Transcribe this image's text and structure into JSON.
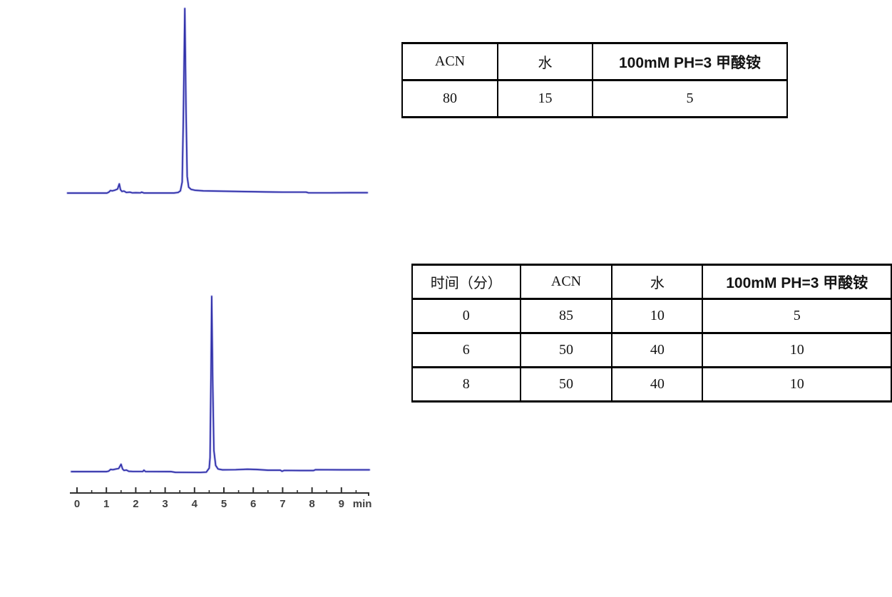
{
  "document": {
    "background_color": "#ffffff",
    "trace_color": "#2f2fa8",
    "trace_glow_color": "#8c8ce0",
    "axis_color": "#303030",
    "axis_label_color": "#3f3f3f"
  },
  "tables": {
    "isocratic": {
      "headers": [
        "ACN",
        "水",
        "100mM PH=3 甲酸铵"
      ],
      "rows": [
        [
          "80",
          "15",
          "5"
        ]
      ]
    },
    "gradient": {
      "headers": [
        "时间（分）",
        "ACN",
        "水",
        "100mM PH=3 甲酸铵"
      ],
      "rows": [
        [
          "0",
          "85",
          "10",
          "5"
        ],
        [
          "6",
          "50",
          "40",
          "10"
        ],
        [
          "8",
          "50",
          "40",
          "10"
        ]
      ]
    }
  },
  "chart_data": [
    {
      "type": "line",
      "name": "hplc-chromatogram-isocratic",
      "title": "",
      "xlabel": "",
      "ylabel": "",
      "x_unit": "min",
      "x_range": [
        -0.3,
        9.9
      ],
      "axis_shown": false,
      "grid": false,
      "legend": "none",
      "main_peak_min": 3.67,
      "minor_peaks_min": [
        1.2,
        1.44,
        2.2
      ],
      "main_peak_rel_height": 100,
      "points": [
        [
          -0.32,
          0
        ],
        [
          1.02,
          0
        ],
        [
          1.08,
          0.5
        ],
        [
          1.14,
          1.4
        ],
        [
          1.2,
          1.2
        ],
        [
          1.28,
          1.5
        ],
        [
          1.38,
          2.2
        ],
        [
          1.44,
          5.0
        ],
        [
          1.48,
          1.8
        ],
        [
          1.53,
          0.9
        ],
        [
          1.6,
          1.1
        ],
        [
          1.68,
          0.3
        ],
        [
          1.8,
          0.5
        ],
        [
          1.88,
          0.1
        ],
        [
          2.0,
          0.2
        ],
        [
          2.16,
          0.1
        ],
        [
          2.2,
          0.5
        ],
        [
          2.28,
          0.05
        ],
        [
          3.3,
          0.05
        ],
        [
          3.44,
          0.3
        ],
        [
          3.52,
          1.2
        ],
        [
          3.58,
          6
        ],
        [
          3.62,
          40
        ],
        [
          3.67,
          100
        ],
        [
          3.71,
          45
        ],
        [
          3.75,
          9
        ],
        [
          3.8,
          3.2
        ],
        [
          3.88,
          2.0
        ],
        [
          4.02,
          1.5
        ],
        [
          4.3,
          1.2
        ],
        [
          5.0,
          1.0
        ],
        [
          5.7,
          0.8
        ],
        [
          6.4,
          0.6
        ],
        [
          7.0,
          0.5
        ],
        [
          7.8,
          0.5
        ],
        [
          7.88,
          0.1
        ],
        [
          8.6,
          0.1
        ],
        [
          9.3,
          0.2
        ],
        [
          9.88,
          0.2
        ]
      ]
    },
    {
      "type": "line",
      "name": "hplc-chromatogram-gradient",
      "title": "",
      "xlabel": "min",
      "ylabel": "",
      "x_unit": "min",
      "x_range": [
        -0.2,
        9.95
      ],
      "axis_shown": true,
      "grid": false,
      "legend": "none",
      "x_ticks": [
        0,
        1,
        2,
        3,
        4,
        5,
        6,
        7,
        8,
        9
      ],
      "x_tick_labels": [
        "0",
        "1",
        "2",
        "3",
        "4",
        "5",
        "6",
        "7",
        "8",
        "9"
      ],
      "axis_unit_label": "min",
      "minor_tick_step": 0.5,
      "main_peak_min": 4.58,
      "minor_peaks_min": [
        1.3,
        1.52,
        2.28
      ],
      "main_peak_rel_height": 100,
      "points": [
        [
          -0.19,
          0
        ],
        [
          1.0,
          0
        ],
        [
          1.08,
          0.3
        ],
        [
          1.14,
          1.2
        ],
        [
          1.22,
          1.1
        ],
        [
          1.3,
          1.4
        ],
        [
          1.42,
          1.8
        ],
        [
          1.5,
          4.2
        ],
        [
          1.55,
          1.5
        ],
        [
          1.6,
          0.7
        ],
        [
          1.68,
          0.9
        ],
        [
          1.76,
          0.2
        ],
        [
          1.9,
          0.1
        ],
        [
          2.24,
          0.1
        ],
        [
          2.28,
          0.8
        ],
        [
          2.33,
          0.05
        ],
        [
          3.2,
          0.0
        ],
        [
          3.35,
          -0.4
        ],
        [
          4.2,
          -0.5
        ],
        [
          4.4,
          -0.3
        ],
        [
          4.45,
          0.8
        ],
        [
          4.5,
          2.0
        ],
        [
          4.53,
          8
        ],
        [
          4.56,
          55
        ],
        [
          4.585,
          100
        ],
        [
          4.62,
          52
        ],
        [
          4.66,
          12
        ],
        [
          4.72,
          3.5
        ],
        [
          4.8,
          1.5
        ],
        [
          4.95,
          1.0
        ],
        [
          5.4,
          1.1
        ],
        [
          5.8,
          1.4
        ],
        [
          6.1,
          1.2
        ],
        [
          6.5,
          0.8
        ],
        [
          6.92,
          0.8
        ],
        [
          6.98,
          0.2
        ],
        [
          7.05,
          0.7
        ],
        [
          7.6,
          0.6
        ],
        [
          8.05,
          0.6
        ],
        [
          8.12,
          1.1
        ],
        [
          9.0,
          1.0
        ],
        [
          9.95,
          1.0
        ]
      ]
    }
  ]
}
